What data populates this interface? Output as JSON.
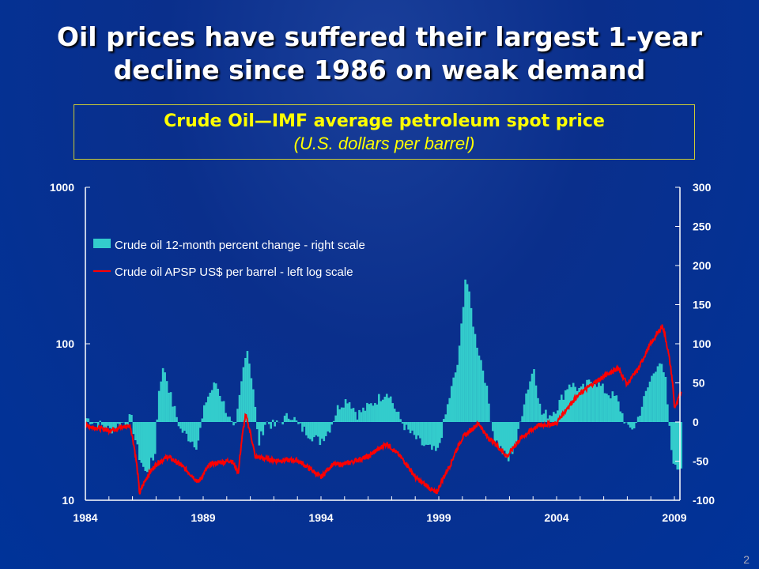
{
  "slide": {
    "title_line1": "Oil prices have suffered their largest 1-year",
    "title_line2": "decline since 1986 on weak demand",
    "page_number": "2"
  },
  "chart_data": {
    "type": "bar+line",
    "title": "Crude Oil—IMF average petroleum spot price",
    "subtitle": "(U.S. dollars per barrel)",
    "x_ticks": [
      "1984",
      "1989",
      "1994",
      "1999",
      "2004",
      "2009"
    ],
    "xlim": [
      1984,
      2009.3
    ],
    "left_axis": {
      "scale": "log",
      "ylim": [
        10,
        1000
      ],
      "ticks": [
        "10",
        "100",
        "1000"
      ]
    },
    "right_axis": {
      "scale": "linear",
      "ylim": [
        -100,
        300
      ],
      "ticks": [
        "-100",
        "-50",
        "0",
        "50",
        "100",
        "150",
        "200",
        "250",
        "300"
      ]
    },
    "legend_placement": "top-left",
    "colors": {
      "bars": "#33cccc",
      "line": "#ff0000"
    },
    "series": [
      {
        "name": "Crude oil 12-month percent change - right scale",
        "type": "bar",
        "axis": "right",
        "points": [
          [
            1984,
            5
          ],
          [
            1985,
            -10
          ],
          [
            1985.9,
            5
          ],
          [
            1986.2,
            -40
          ],
          [
            1986.5,
            -65
          ],
          [
            1986.9,
            -45
          ],
          [
            1987.1,
            50
          ],
          [
            1987.3,
            70
          ],
          [
            1987.6,
            30
          ],
          [
            1988,
            -10
          ],
          [
            1988.7,
            -30
          ],
          [
            1989.1,
            30
          ],
          [
            1989.5,
            50
          ],
          [
            1990,
            10
          ],
          [
            1990.3,
            -15
          ],
          [
            1990.8,
            100
          ],
          [
            1991.1,
            40
          ],
          [
            1991.3,
            -30
          ],
          [
            1991.6,
            0
          ],
          [
            1992,
            -5
          ],
          [
            1992.7,
            10
          ],
          [
            1993,
            -5
          ],
          [
            1993.9,
            -25
          ],
          [
            1994.3,
            -10
          ],
          [
            1994.7,
            20
          ],
          [
            1995.1,
            30
          ],
          [
            1995.5,
            10
          ],
          [
            1996,
            20
          ],
          [
            1996.8,
            40
          ],
          [
            1997.2,
            10
          ],
          [
            1997.6,
            -10
          ],
          [
            1998.3,
            -30
          ],
          [
            1998.9,
            -40
          ],
          [
            1999.4,
            30
          ],
          [
            1999.8,
            80
          ],
          [
            2000.1,
            190
          ],
          [
            2000.5,
            110
          ],
          [
            2000.9,
            60
          ],
          [
            2001.3,
            -20
          ],
          [
            2001.9,
            -50
          ],
          [
            2002.3,
            -20
          ],
          [
            2002.6,
            30
          ],
          [
            2003,
            70
          ],
          [
            2003.3,
            10
          ],
          [
            2003.7,
            10
          ],
          [
            2004,
            20
          ],
          [
            2004.5,
            50
          ],
          [
            2005,
            40
          ],
          [
            2005.5,
            55
          ],
          [
            2006,
            40
          ],
          [
            2006.5,
            30
          ],
          [
            2007,
            -10
          ],
          [
            2007.3,
            -5
          ],
          [
            2007.9,
            50
          ],
          [
            2008.3,
            80
          ],
          [
            2008.6,
            50
          ],
          [
            2008.8,
            -30
          ],
          [
            2009,
            -60
          ],
          [
            2009.3,
            -55
          ]
        ]
      },
      {
        "name": "Crude oil APSP US$ per barrel - left log scale",
        "type": "line",
        "axis": "left",
        "points": [
          [
            1984,
            30
          ],
          [
            1985,
            28
          ],
          [
            1985.9,
            30
          ],
          [
            1986.3,
            11
          ],
          [
            1986.6,
            14
          ],
          [
            1987,
            17
          ],
          [
            1987.5,
            19
          ],
          [
            1988,
            17
          ],
          [
            1988.8,
            13
          ],
          [
            1989.3,
            17
          ],
          [
            1990.2,
            18
          ],
          [
            1990.5,
            15
          ],
          [
            1990.8,
            35
          ],
          [
            1991.2,
            19
          ],
          [
            1992,
            18
          ],
          [
            1993,
            18
          ],
          [
            1994,
            14
          ],
          [
            1994.5,
            17
          ],
          [
            1995,
            17
          ],
          [
            1996,
            19
          ],
          [
            1996.8,
            23
          ],
          [
            1997.5,
            18
          ],
          [
            1998,
            14
          ],
          [
            1998.9,
            11
          ],
          [
            1999.5,
            17
          ],
          [
            2000,
            25
          ],
          [
            2000.7,
            31
          ],
          [
            2001,
            26
          ],
          [
            2001.9,
            19
          ],
          [
            2002.5,
            25
          ],
          [
            2003.2,
            30
          ],
          [
            2004,
            31
          ],
          [
            2004.8,
            45
          ],
          [
            2005.5,
            55
          ],
          [
            2006.6,
            70
          ],
          [
            2007,
            55
          ],
          [
            2007.5,
            70
          ],
          [
            2008.5,
            130
          ],
          [
            2008.9,
            60
          ],
          [
            2009,
            40
          ],
          [
            2009.1,
            41
          ],
          [
            2009.3,
            50
          ]
        ]
      }
    ]
  }
}
